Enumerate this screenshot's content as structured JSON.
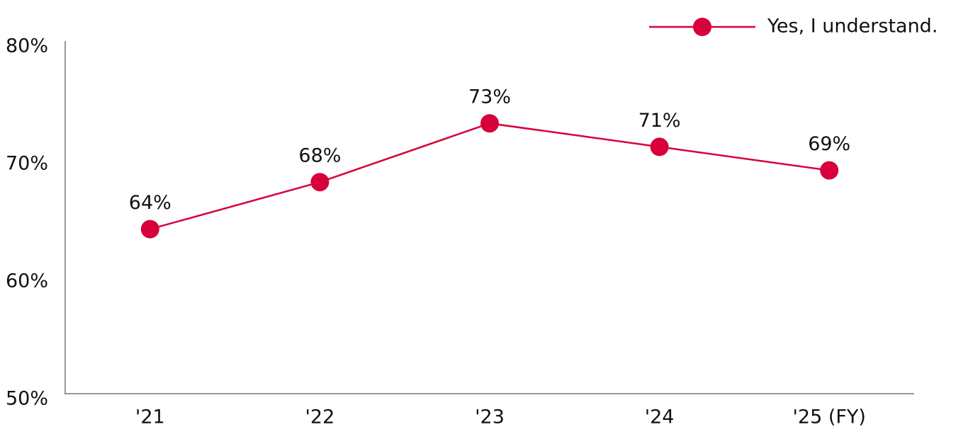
{
  "chart_data": {
    "type": "line",
    "categories": [
      "'21",
      "'22",
      "'23",
      "'24",
      "'25 (FY)"
    ],
    "series": [
      {
        "name": "Yes, I understand.",
        "color": "#d7003a",
        "values": [
          64,
          68,
          73,
          71,
          69
        ],
        "value_labels": [
          "64%",
          "68%",
          "73%",
          "71%",
          "69%"
        ]
      }
    ],
    "ylim": [
      50,
      80
    ],
    "yticks": [
      {
        "value": 50,
        "label": "50%"
      },
      {
        "value": 60,
        "label": "60%"
      },
      {
        "value": 70,
        "label": "70%"
      },
      {
        "value": 80,
        "label": "80%"
      }
    ],
    "grid": false,
    "legend": "top-right"
  }
}
